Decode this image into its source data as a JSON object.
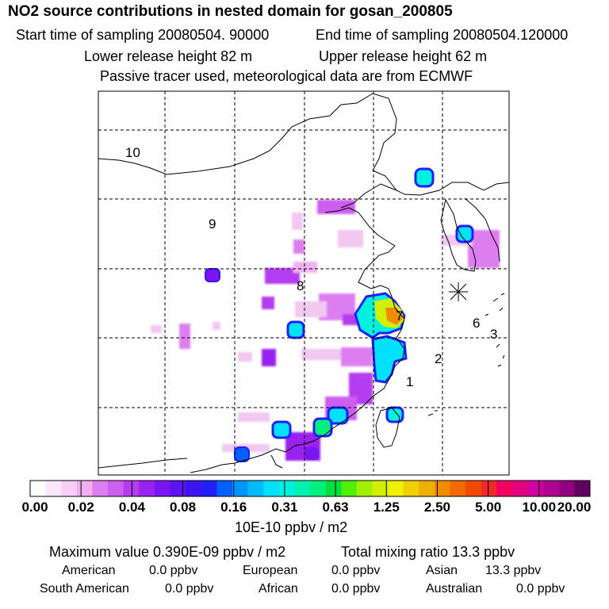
{
  "header": {
    "title": "NO2 source contributions in nested domain for gosan_200805",
    "start_time": "Start time of sampling 20080504. 90000",
    "end_time": "End time of sampling 20080504.120000",
    "lower_height": "Lower release height   82 m",
    "upper_height": "Upper release height   62 m",
    "note": "Passive tracer used, meteorological data are from ECMWF"
  },
  "map": {
    "region_labels": [
      "10",
      "9",
      "8",
      "7",
      "6",
      "3",
      "2",
      "1"
    ]
  },
  "colorbar": {
    "ticks": [
      "0.00",
      "0.02",
      "0.04",
      "0.08",
      "0.16",
      "0.31",
      "0.63",
      "1.25",
      "2.50",
      "5.00",
      "10.00",
      "20.00"
    ],
    "colors": [
      "#ffffff",
      "#fbe6fb",
      "#f6cff6",
      "#f0b0f0",
      "#dd7ef0",
      "#cc5ef0",
      "#b43cf0",
      "#9a22f0",
      "#7a14f0",
      "#5a14f0",
      "#3c14f0",
      "#2020ff",
      "#0060ff",
      "#0096ff",
      "#00bcff",
      "#00e0ff",
      "#00f0e0",
      "#00f0b0",
      "#00f080",
      "#00e040",
      "#50f000",
      "#a0f000",
      "#d0f000",
      "#f0f000",
      "#f0d000",
      "#f0b000",
      "#f08c00",
      "#f06a00",
      "#f04a00",
      "#f02a2a",
      "#f00060",
      "#e00080",
      "#d000a0",
      "#b00090",
      "#900080",
      "#600060"
    ],
    "units": "10E-10 ppbv / m2"
  },
  "summary": {
    "max_value": "Maximum value  0.390E-09 ppbv / m2",
    "total": "Total mixing ratio       13.3 ppbv",
    "american_label": "American",
    "american_value": "0.0 ppbv",
    "european_label": "European",
    "european_value": "0.0 ppbv",
    "asian_label": "Asian",
    "asian_value": "13.3 ppbv",
    "southamerican_label": "South American",
    "southamerican_value": "0.0 ppbv",
    "african_label": "African",
    "african_value": "0.0 ppbv",
    "australian_label": "Australian",
    "australian_value": "0.0 ppbv"
  }
}
